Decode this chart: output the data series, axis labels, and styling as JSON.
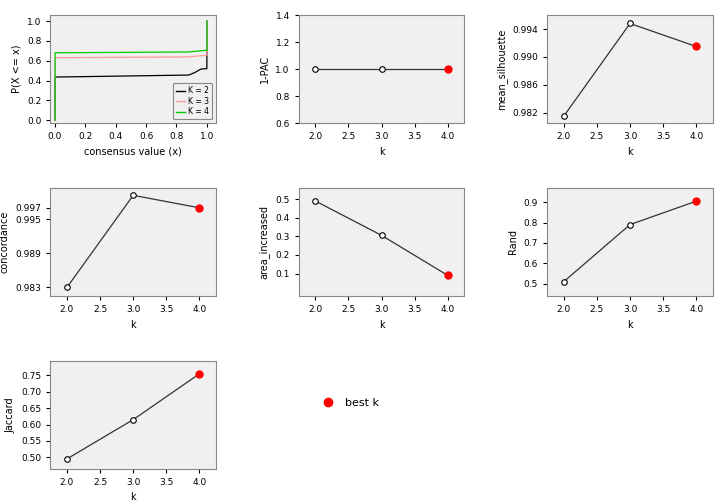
{
  "ecdf": {
    "k2": {
      "color": "#000000",
      "label": "K = 2"
    },
    "k3": {
      "color": "#FF9999",
      "label": "K = 3"
    },
    "k4": {
      "color": "#00CC00",
      "label": "K = 4"
    }
  },
  "pac": {
    "k": [
      2.0,
      3.0,
      4.0
    ],
    "y": [
      0.998,
      0.998,
      0.998
    ],
    "ylim": [
      0.6,
      1.4
    ],
    "yticks": [
      0.6,
      0.8,
      1.0,
      1.2,
      1.4
    ],
    "ylabel": "1-PAC",
    "best_k": 4
  },
  "mean_silhouette": {
    "k": [
      2.0,
      3.0,
      4.0
    ],
    "y": [
      0.9815,
      0.9948,
      0.9915
    ],
    "ylim": [
      0.9805,
      0.996
    ],
    "yticks": [
      0.982,
      0.986,
      0.99,
      0.994
    ],
    "ylabel": "mean_silhouette",
    "best_k": 4
  },
  "concordance": {
    "k": [
      2.0,
      3.0,
      4.0
    ],
    "y": [
      0.983,
      0.9992,
      0.997
    ],
    "ylim": [
      0.9815,
      1.0005
    ],
    "yticks": [
      0.983,
      0.989,
      0.995,
      0.997
    ],
    "ylabel": "concordance",
    "best_k": 4
  },
  "area_increased": {
    "k": [
      2.0,
      3.0,
      4.0
    ],
    "y": [
      0.49,
      0.305,
      0.09
    ],
    "ylim": [
      -0.02,
      0.56
    ],
    "yticks": [
      0.1,
      0.2,
      0.3,
      0.4,
      0.5
    ],
    "ylabel": "area_increased",
    "best_k": 4
  },
  "rand": {
    "k": [
      2.0,
      3.0,
      4.0
    ],
    "y": [
      0.51,
      0.79,
      0.905
    ],
    "ylim": [
      0.44,
      0.97
    ],
    "yticks": [
      0.5,
      0.6,
      0.7,
      0.8,
      0.9
    ],
    "ylabel": "Rand",
    "best_k": 4
  },
  "jaccard": {
    "k": [
      2.0,
      3.0,
      4.0
    ],
    "y": [
      0.495,
      0.615,
      0.755
    ],
    "ylim": [
      0.465,
      0.795
    ],
    "yticks": [
      0.5,
      0.55,
      0.6,
      0.65,
      0.7,
      0.75
    ],
    "ylabel": "Jaccard",
    "best_k": 4
  },
  "bg_color": "#F0F0F0",
  "line_color": "#333333",
  "open_marker_size": 4,
  "best_marker_size": 5
}
